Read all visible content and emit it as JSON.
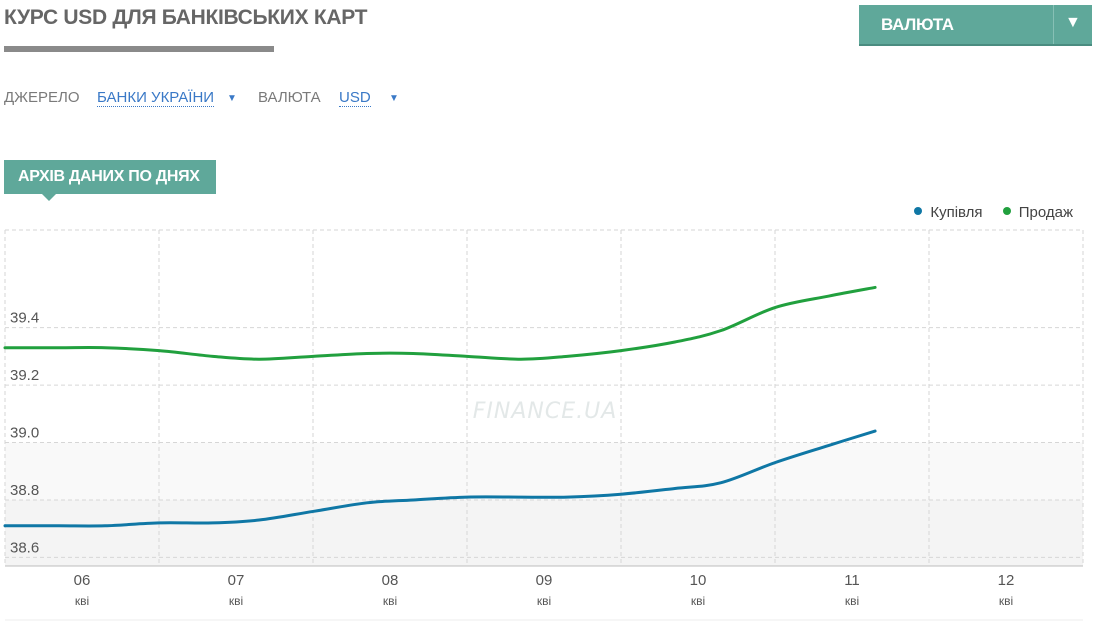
{
  "header": {
    "title": "КУРС USD ДЛЯ БАНКІВСЬКИХ КАРТ",
    "currency_button": "ВАЛЮТА",
    "currency_arrow": "▼"
  },
  "filters": {
    "source_label": "ДЖЕРЕЛО",
    "source_value": "БАНКИ УКРАЇНИ",
    "currency_label": "ВАЛЮТА",
    "currency_value": "USD",
    "arrow": "▼"
  },
  "section_tab": "АРХІВ ДАНИХ ПО ДНЯХ",
  "watermark": "FINANCE.UA",
  "colors": {
    "accent": "#5fa89a",
    "link": "#3a79c7",
    "buy": "#0f77a5",
    "sell": "#21a03e"
  },
  "chart_data": {
    "type": "line",
    "x": [
      "06",
      "07",
      "08",
      "09",
      "10",
      "11",
      "12"
    ],
    "x_sublabel": "кві",
    "ylim": [
      38.57,
      39.74
    ],
    "yticks": [
      "38.6",
      "38.8",
      "39.0",
      "39.2",
      "39.4"
    ],
    "grid": true,
    "legend_position": "top-right",
    "series": [
      {
        "name": "Купівля",
        "color": "#0f77a5",
        "points": [
          [
            0,
            38.71
          ],
          [
            0.35,
            38.71
          ],
          [
            0.65,
            38.71
          ],
          [
            1,
            38.72
          ],
          [
            1.35,
            38.72
          ],
          [
            1.65,
            38.73
          ],
          [
            2,
            38.76
          ],
          [
            2.35,
            38.79
          ],
          [
            2.65,
            38.8
          ],
          [
            3,
            38.81
          ],
          [
            3.35,
            38.81
          ],
          [
            3.65,
            38.81
          ],
          [
            4,
            38.82
          ],
          [
            4.35,
            38.84
          ],
          [
            4.65,
            38.86
          ],
          [
            5,
            38.93
          ],
          [
            5.35,
            38.99
          ],
          [
            5.65,
            39.04
          ]
        ]
      },
      {
        "name": "Продаж",
        "color": "#21a03e",
        "points": [
          [
            0,
            39.33
          ],
          [
            0.35,
            39.33
          ],
          [
            0.65,
            39.33
          ],
          [
            1,
            39.32
          ],
          [
            1.35,
            39.3
          ],
          [
            1.65,
            39.29
          ],
          [
            2,
            39.3
          ],
          [
            2.35,
            39.31
          ],
          [
            2.65,
            39.31
          ],
          [
            3,
            39.3
          ],
          [
            3.35,
            39.29
          ],
          [
            3.65,
            39.3
          ],
          [
            4,
            39.32
          ],
          [
            4.35,
            39.35
          ],
          [
            4.65,
            39.39
          ],
          [
            5,
            39.47
          ],
          [
            5.35,
            39.51
          ],
          [
            5.65,
            39.54
          ]
        ]
      }
    ]
  }
}
